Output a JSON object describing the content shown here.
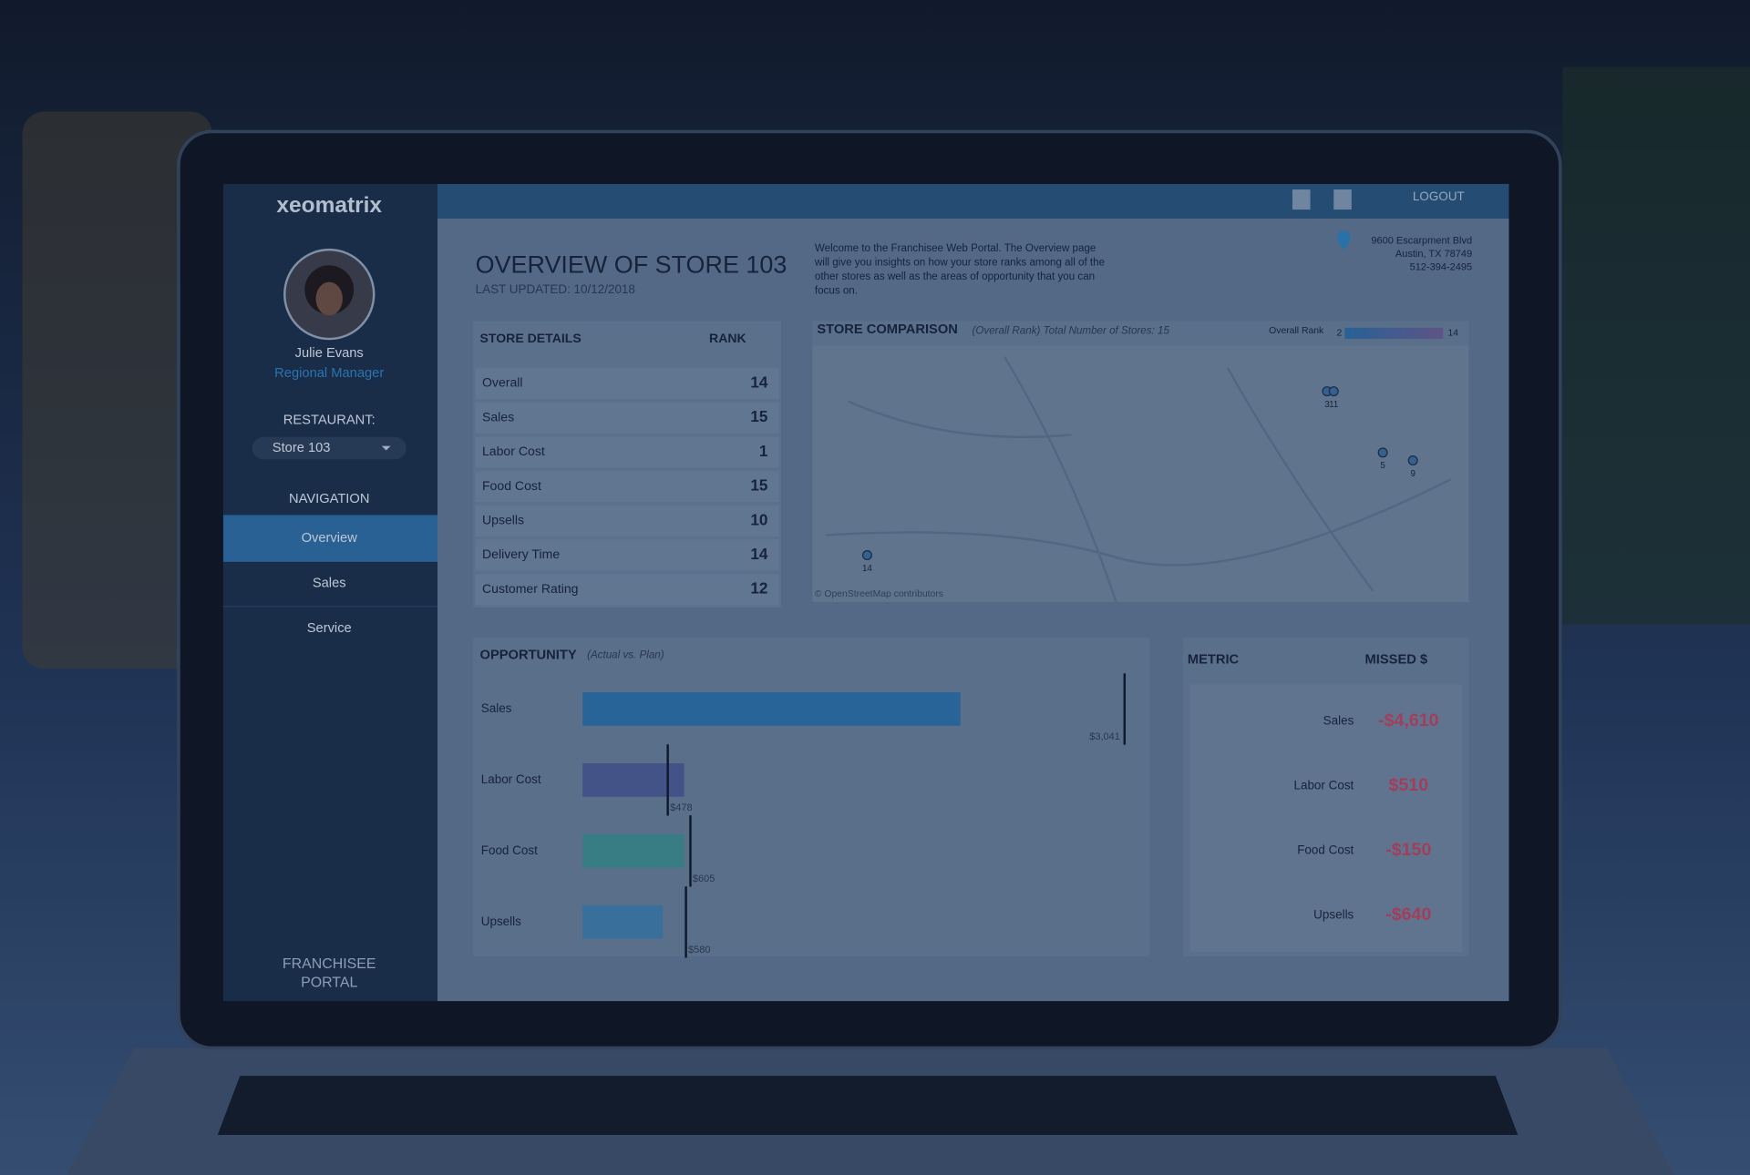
{
  "sidebar": {
    "brand": "xeomatrix",
    "user": {
      "name": "Julie Evans",
      "role": "Regional Manager"
    },
    "restaurant_label": "RESTAURANT:",
    "restaurant": "Store 103",
    "nav_label": "NAVIGATION",
    "nav": [
      "Overview",
      "Sales",
      "Service"
    ],
    "footer": [
      "FRANCHISEE",
      "PORTAL"
    ]
  },
  "topbar": {
    "logout": "LOGOUT"
  },
  "header": {
    "title": "OVERVIEW OF STORE 103",
    "updated": "LAST UPDATED: 10/12/2018",
    "intro": [
      "Welcome to the Franchisee Web Portal. The Overview page",
      "will give you insights on how your store ranks among all of the",
      "other stores as well as the areas of opportunity that you can",
      "focus on."
    ],
    "address": [
      "9600 Escarpment Blvd",
      "Austin, TX 78749",
      "512-394-2495"
    ]
  },
  "store_details": {
    "headers": [
      "STORE DETAILS",
      "RANK"
    ],
    "rows": [
      [
        "Overall",
        "14"
      ],
      [
        "Sales",
        "15"
      ],
      [
        "Labor Cost",
        "1"
      ],
      [
        "Food Cost",
        "15"
      ],
      [
        "Upsells",
        "10"
      ],
      [
        "Delivery Time",
        "14"
      ],
      [
        "Customer Rating",
        "12"
      ]
    ]
  },
  "store_comparison": {
    "title": "STORE COMPARISON",
    "subtitle": "(Overall Rank) Total Number of Stores: 15",
    "legend": {
      "label": "Overall Rank",
      "min": "2",
      "max": "14"
    },
    "markers": [
      "3",
      "11",
      "5",
      "9",
      "14"
    ],
    "attribution": "© OpenStreetMap contributors"
  },
  "chart_data": {
    "type": "bar",
    "title": "OPPORTUNITY",
    "subtitle": "(Actual vs. Plan)",
    "categories": [
      "Sales",
      "Labor Cost",
      "Food Cost",
      "Upsells"
    ],
    "values": [
      2120,
      570,
      570,
      450
    ],
    "targets": [
      3041,
      478,
      605,
      580
    ],
    "target_labels": [
      "$3,041",
      "$478",
      "$605",
      "$580"
    ],
    "colors": [
      "#2d6ea6",
      "#4a5a92",
      "#3f8a8e",
      "#3f7aa8"
    ],
    "xlim": [
      0,
      3200
    ]
  },
  "metric_table": {
    "headers": [
      "METRIC",
      "MISSED $"
    ],
    "rows": [
      [
        "Sales",
        "-$4,610"
      ],
      [
        "Labor Cost",
        "$510"
      ],
      [
        "Food Cost",
        "-$150"
      ],
      [
        "Upsells",
        "-$640"
      ]
    ]
  }
}
